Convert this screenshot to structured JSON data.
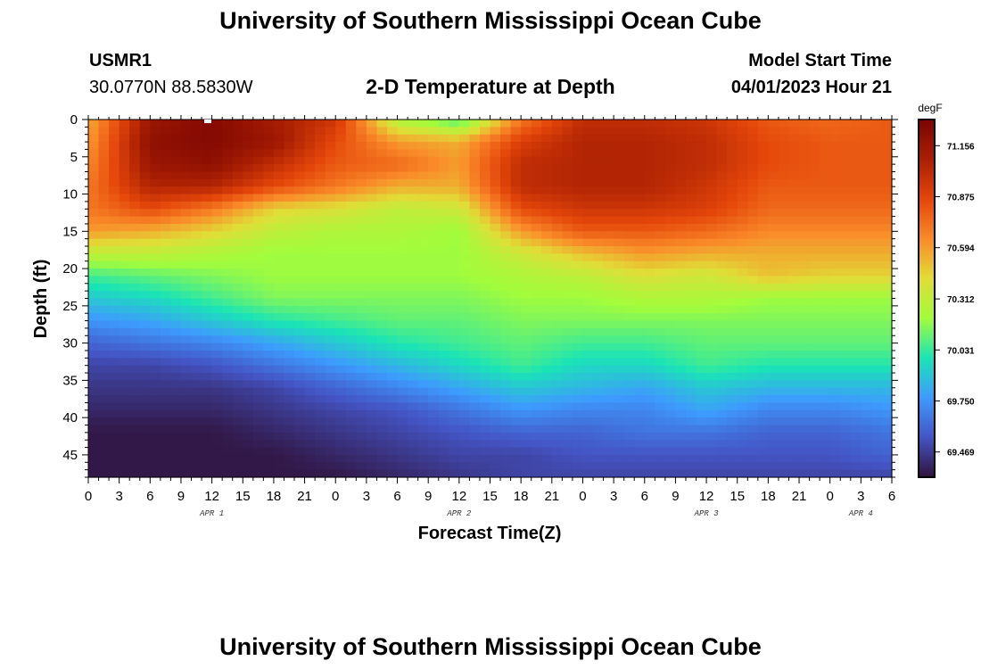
{
  "page": {
    "title_top": "University of Southern Mississippi Ocean Cube",
    "title_bottom": "University of Southern Mississippi Ocean Cube",
    "station_id": "USMR1",
    "station_coords": "30.0770N  88.5830W",
    "model_start_label": "Model Start Time",
    "model_start_value": "04/01/2023 Hour 21"
  },
  "chart_data": {
    "type": "heatmap",
    "title": "2-D Temperature at Depth",
    "xlabel": "Forecast Time(Z)",
    "ylabel": "Depth (ft)",
    "colorbar_unit": "degF",
    "xlim_hours": [
      0,
      78
    ],
    "ylim": [
      0,
      48
    ],
    "x_tick_labels": [
      "0",
      "3",
      "6",
      "9",
      "12",
      "15",
      "18",
      "21",
      "0",
      "3",
      "6",
      "9",
      "12",
      "15",
      "18",
      "21",
      "0",
      "3",
      "6",
      "9",
      "12",
      "15",
      "18",
      "21",
      "0",
      "3",
      "6"
    ],
    "y_tick_labels": [
      "0",
      "5",
      "10",
      "15",
      "20",
      "25",
      "30",
      "35",
      "40",
      "45"
    ],
    "date_labels": [
      {
        "label": "APR 1",
        "hour": 12
      },
      {
        "label": "APR 2",
        "hour": 36
      },
      {
        "label": "APR 3",
        "hour": 60
      },
      {
        "label": "APR 4",
        "hour": 75
      }
    ],
    "colorbar_ticks": [
      "71.156",
      "70.875",
      "70.594",
      "70.312",
      "70.031",
      "69.750",
      "69.469"
    ],
    "color_range": [
      69.33,
      71.3
    ],
    "colormap": [
      "#30123b",
      "#4454c4",
      "#3e9bfe",
      "#1ae4b6",
      "#a2fc3c",
      "#e1dd37",
      "#fa8a29",
      "#e4460a",
      "#aa1f03",
      "#7a0403"
    ],
    "time_hours": [
      0,
      6,
      12,
      18,
      24,
      30,
      36,
      42,
      48,
      54,
      60,
      66,
      72,
      78
    ],
    "depth_ft": [
      0,
      3,
      6,
      9,
      12,
      15,
      18,
      21,
      24,
      27,
      30,
      33,
      36,
      39,
      42,
      45,
      48
    ],
    "temperature_degF": [
      [
        70.55,
        71.15,
        71.25,
        71.1,
        70.95,
        70.25,
        70.05,
        70.7,
        71.0,
        71.0,
        70.95,
        70.8,
        70.75,
        70.8
      ],
      [
        70.6,
        71.2,
        71.25,
        71.15,
        70.85,
        70.6,
        70.55,
        70.9,
        71.05,
        71.05,
        71.0,
        70.85,
        70.8,
        70.8
      ],
      [
        70.65,
        71.15,
        71.2,
        71.0,
        70.8,
        70.75,
        70.6,
        71.0,
        71.05,
        71.05,
        71.0,
        70.85,
        70.8,
        70.8
      ],
      [
        70.7,
        71.05,
        71.05,
        70.85,
        70.7,
        70.55,
        70.55,
        71.0,
        71.05,
        71.05,
        70.95,
        70.8,
        70.8,
        70.8
      ],
      [
        70.7,
        70.85,
        70.7,
        70.45,
        70.4,
        70.3,
        70.35,
        70.85,
        70.95,
        70.95,
        70.9,
        70.75,
        70.75,
        70.75
      ],
      [
        70.6,
        70.55,
        70.45,
        70.3,
        70.25,
        70.25,
        70.2,
        70.6,
        70.8,
        70.8,
        70.75,
        70.65,
        70.65,
        70.65
      ],
      [
        70.3,
        70.3,
        70.25,
        70.2,
        70.2,
        70.2,
        70.2,
        70.35,
        70.5,
        70.6,
        70.55,
        70.55,
        70.55,
        70.55
      ],
      [
        70.05,
        70.1,
        70.15,
        70.2,
        70.2,
        70.2,
        70.2,
        70.25,
        70.3,
        70.4,
        70.35,
        70.5,
        70.45,
        70.45
      ],
      [
        69.9,
        69.95,
        70.05,
        70.15,
        70.15,
        70.15,
        70.15,
        70.2,
        70.2,
        70.25,
        70.25,
        70.2,
        70.2,
        70.2
      ],
      [
        69.75,
        69.8,
        69.9,
        70.0,
        70.05,
        70.1,
        70.1,
        70.15,
        70.15,
        70.15,
        70.15,
        70.15,
        70.15,
        70.15
      ],
      [
        69.6,
        69.65,
        69.7,
        69.8,
        69.9,
        70.0,
        70.05,
        70.1,
        70.05,
        70.05,
        70.1,
        70.1,
        70.1,
        70.1
      ],
      [
        69.5,
        69.5,
        69.55,
        69.65,
        69.75,
        69.85,
        69.95,
        70.05,
        69.95,
        69.95,
        70.05,
        70.0,
        70.0,
        70.0
      ],
      [
        69.45,
        69.45,
        69.45,
        69.5,
        69.6,
        69.7,
        69.8,
        69.9,
        69.85,
        69.8,
        69.9,
        69.85,
        69.85,
        69.85
      ],
      [
        69.4,
        69.4,
        69.4,
        69.45,
        69.5,
        69.55,
        69.65,
        69.75,
        69.7,
        69.7,
        69.8,
        69.7,
        69.7,
        69.75
      ],
      [
        69.35,
        69.35,
        69.35,
        69.4,
        69.45,
        69.5,
        69.55,
        69.6,
        69.6,
        69.65,
        69.65,
        69.6,
        69.6,
        69.65
      ],
      [
        69.35,
        69.35,
        69.35,
        69.35,
        69.4,
        69.45,
        69.5,
        69.5,
        69.55,
        69.55,
        69.55,
        69.55,
        69.55,
        69.6
      ],
      [
        69.35,
        69.35,
        69.35,
        69.35,
        69.35,
        69.4,
        69.45,
        69.5,
        69.5,
        69.5,
        69.5,
        69.5,
        69.5,
        69.5
      ]
    ]
  }
}
